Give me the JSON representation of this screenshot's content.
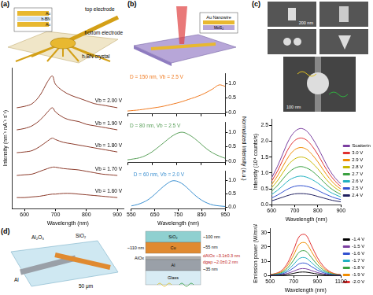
{
  "panel_labels": [
    "(a)",
    "(b)",
    "(c)",
    "(d)"
  ],
  "schematics": {
    "a": [
      "top electrode",
      "bottom electrode",
      "h-BN crystal",
      "Au",
      "h-BN",
      "Au"
    ],
    "b": [
      "Au Nanowire",
      "MoS₂"
    ],
    "c": [
      "200 nm",
      "100 nm"
    ],
    "d_top": [
      "Al₂O₃",
      "SiO₂",
      "Al",
      "50 μm"
    ],
    "d_cross": [
      "SiO₂",
      "Cu",
      "AlOx",
      "Al",
      "Glass",
      "~100 nm",
      "~55 nm",
      "~110 nm",
      "dAlOx ~3.1±0.3 nm",
      "dgap ~2.0±0.2 nm",
      "~35 nm"
    ]
  },
  "chart_data": [
    {
      "type": "line",
      "x_label": "Wavelength (nm)",
      "y_label": "Intensity (nm⁻¹ nA⁻¹ s⁻¹)",
      "x": [
        575,
        600,
        625,
        650,
        675,
        690,
        700,
        725,
        750,
        775,
        800,
        825,
        850,
        875,
        900
      ],
      "xlim": [
        560,
        920
      ],
      "xticks": [
        600,
        700,
        800,
        900
      ],
      "ylim": [
        0,
        10.2
      ],
      "tick_labels": "x",
      "grid": false,
      "series": [
        {
          "name": "Vb = 2.00 V",
          "color": "#8b3a2a",
          "values": [
            7.3,
            7.4,
            7.6,
            8.2,
            9.2,
            9.6,
            9.0,
            8.5,
            8.2,
            8.0,
            7.8,
            7.6,
            7.5,
            7.4,
            7.3
          ]
        },
        {
          "name": "Vb = 1.90 V",
          "color": "#8b3a2a",
          "values": [
            5.7,
            5.8,
            6.0,
            6.4,
            7.0,
            7.3,
            7.0,
            6.6,
            6.4,
            6.3,
            6.1,
            6.0,
            5.9,
            5.8,
            5.7
          ]
        },
        {
          "name": "Vb = 1.80 V",
          "color": "#8b3a2a",
          "values": [
            4.05,
            4.1,
            4.2,
            4.5,
            4.9,
            5.1,
            5.0,
            4.8,
            4.7,
            4.6,
            4.5,
            4.4,
            4.3,
            4.2,
            4.1
          ]
        },
        {
          "name": "Vb = 1.70 V",
          "color": "#8b3a2a",
          "values": [
            2.4,
            2.45,
            2.5,
            2.7,
            2.9,
            3.0,
            3.0,
            2.9,
            2.85,
            2.8,
            2.7,
            2.6,
            2.5,
            2.45,
            2.4
          ]
        },
        {
          "name": "Vb = 1.60 V",
          "color": "#8b3a2a",
          "values": [
            0.8,
            0.8,
            0.85,
            0.9,
            1.0,
            1.05,
            1.05,
            1.1,
            1.1,
            1.05,
            1.0,
            0.95,
            0.9,
            0.85,
            0.8
          ]
        }
      ]
    },
    {
      "type": "line",
      "x": [
        550,
        575,
        600,
        625,
        650,
        675,
        700,
        725,
        750,
        775,
        800,
        825,
        850,
        875,
        900,
        925,
        950
      ],
      "xlim": [
        550,
        950
      ],
      "xticks": [
        550,
        650,
        750,
        850,
        950
      ],
      "ylim": [
        -0.05,
        1.35
      ],
      "yticks": [
        {
          "value": 0,
          "label": "0.0"
        },
        0.5,
        {
          "value": 1,
          "label": "1.0"
        }
      ],
      "tick_labels": "y",
      "grid": false,
      "series": [
        {
          "name": "D = 150 nm, Vb = 2.5 V",
          "color": "#f07a20",
          "values": [
            0.05,
            0.07,
            0.09,
            0.12,
            0.15,
            0.18,
            0.22,
            0.27,
            0.32,
            0.38,
            0.45,
            0.52,
            0.6,
            0.7,
            0.82,
            0.95,
            0.9
          ]
        }
      ]
    },
    {
      "type": "line",
      "y_label": "Normalized Intensity (a.u.)",
      "x": [
        550,
        575,
        600,
        625,
        650,
        675,
        700,
        725,
        750,
        775,
        800,
        825,
        850,
        875,
        900,
        925,
        950
      ],
      "xlim": [
        550,
        950
      ],
      "xticks": [
        550,
        650,
        750,
        850,
        950
      ],
      "ylim": [
        -0.05,
        1.35
      ],
      "yticks": [
        {
          "value": 0,
          "label": "0.0"
        },
        0.5,
        {
          "value": 1,
          "label": "1.0"
        }
      ],
      "tick_labels": "y",
      "grid": false,
      "series": [
        {
          "name": "D = 80 nm, Vb = 2.5 V",
          "color": "#5aa05a",
          "values": [
            0.05,
            0.08,
            0.12,
            0.2,
            0.32,
            0.48,
            0.65,
            0.82,
            0.95,
            1.0,
            0.92,
            0.78,
            0.6,
            0.42,
            0.28,
            0.18,
            0.1
          ]
        }
      ]
    },
    {
      "type": "line",
      "x_label": "Wavelength (nm)",
      "x": [
        550,
        575,
        600,
        625,
        650,
        675,
        700,
        725,
        750,
        775,
        800,
        825,
        850,
        875,
        900,
        925,
        950
      ],
      "xlim": [
        550,
        950
      ],
      "xticks": [
        550,
        650,
        750,
        850,
        950
      ],
      "ylim": [
        -0.05,
        1.35
      ],
      "yticks": [
        {
          "value": 0,
          "label": "0.0"
        },
        0.5,
        {
          "value": 1,
          "label": "1.0"
        }
      ],
      "tick_labels": true,
      "grid": false,
      "series": [
        {
          "name": "D = 60 nm, Vb = 2.0 V",
          "color": "#3a8fd0",
          "values": [
            0.05,
            0.1,
            0.18,
            0.3,
            0.48,
            0.68,
            0.86,
            0.98,
            0.95,
            0.82,
            0.62,
            0.42,
            0.26,
            0.15,
            0.08,
            0.05,
            0.03
          ]
        }
      ]
    },
    {
      "type": "line",
      "x_label": "Wavelength (nm)",
      "y_label": "Intensity (10⁴ counts/s)",
      "x": [
        600,
        625,
        650,
        675,
        700,
        725,
        750,
        775,
        800,
        825,
        850,
        875,
        900
      ],
      "xlim": [
        600,
        900
      ],
      "xticks": [
        600,
        700,
        800,
        900
      ],
      "ylim": [
        0,
        2.7
      ],
      "yticks": [
        {
          "value": 0,
          "label": "0.0"
        },
        0.5,
        {
          "value": 1,
          "label": "1.0"
        },
        1.5,
        {
          "value": 2,
          "label": "2.0"
        },
        2.5
      ],
      "grid": false,
      "legend": "right",
      "series": [
        {
          "name": "Scattering",
          "color": "#7b3fa0",
          "values": [
            0.84,
            1.2,
            1.63,
            2.04,
            2.3,
            2.4,
            2.33,
            2.11,
            1.8,
            1.44,
            1.1,
            0.84,
            0.65
          ]
        },
        {
          "name": "3.0 V",
          "color": "#e03030",
          "values": [
            0.74,
            1.05,
            1.43,
            1.79,
            2.02,
            2.1,
            2.04,
            1.85,
            1.58,
            1.26,
            0.97,
            0.74,
            0.57
          ]
        },
        {
          "name": "2.9 V",
          "color": "#f08c00",
          "values": [
            0.63,
            0.9,
            1.22,
            1.53,
            1.73,
            1.8,
            1.75,
            1.58,
            1.35,
            1.08,
            0.83,
            0.63,
            0.49
          ]
        },
        {
          "name": "2.8 V",
          "color": "#c8b800",
          "values": [
            0.53,
            0.75,
            1.02,
            1.28,
            1.44,
            1.5,
            1.46,
            1.32,
            1.13,
            0.9,
            0.69,
            0.53,
            0.41
          ]
        },
        {
          "name": "2.7 V",
          "color": "#3aa040",
          "values": [
            0.42,
            0.6,
            0.82,
            1.02,
            1.15,
            1.2,
            1.16,
            1.06,
            0.9,
            0.72,
            0.55,
            0.42,
            0.32
          ]
        },
        {
          "name": "2.6 V",
          "color": "#20b0c0",
          "values": [
            0.32,
            0.45,
            0.61,
            0.77,
            0.86,
            0.9,
            0.87,
            0.79,
            0.68,
            0.54,
            0.41,
            0.32,
            0.24
          ]
        },
        {
          "name": "2.5 V",
          "color": "#3050d0",
          "values": [
            0.21,
            0.3,
            0.41,
            0.51,
            0.58,
            0.6,
            0.58,
            0.53,
            0.45,
            0.36,
            0.28,
            0.21,
            0.16
          ]
        },
        {
          "name": "2.4 V",
          "color": "#202060",
          "values": [
            0.12,
            0.18,
            0.24,
            0.3,
            0.34,
            0.35,
            0.34,
            0.31,
            0.26,
            0.21,
            0.16,
            0.12,
            0.09
          ]
        }
      ]
    },
    {
      "type": "line",
      "x_label": "Wavelength (nm)",
      "y_label": "Emission power (W/m²/A)",
      "x": [
        500,
        550,
        600,
        650,
        700,
        750,
        800,
        850,
        900,
        950,
        1000,
        1050,
        1100
      ],
      "xlim": [
        500,
        1100
      ],
      "xticks": [
        500,
        700,
        900,
        1100
      ],
      "ylim": [
        0,
        33
      ],
      "yticks": [
        0,
        10,
        20,
        30
      ],
      "grid": false,
      "legend": "right",
      "series": [
        {
          "name": "-1.4 V",
          "color": "#000000",
          "values": [
            0.05,
            0.13,
            0.3,
            0.75,
            1.5,
            2.3,
            2.38,
            1.75,
            1.05,
            0.55,
            0.25,
            0.1,
            0.05
          ]
        },
        {
          "name": "-1.5 V",
          "color": "#7b3fa0",
          "values": [
            0.1,
            0.25,
            0.6,
            1.5,
            3,
            4.6,
            4.75,
            3.5,
            2.1,
            1.1,
            0.5,
            0.2,
            0.1
          ]
        },
        {
          "name": "-1.6 V",
          "color": "#3050d0",
          "values": [
            0.18,
            0.45,
            1.08,
            2.7,
            5.4,
            8.28,
            8.55,
            6.3,
            3.78,
            1.98,
            0.9,
            0.36,
            0.18
          ]
        },
        {
          "name": "-1.7 V",
          "color": "#20b0c0",
          "values": [
            0.26,
            0.65,
            1.56,
            3.9,
            7.8,
            11.96,
            12.35,
            9.1,
            5.46,
            2.86,
            1.3,
            0.52,
            0.26
          ]
        },
        {
          "name": "-1.8 V",
          "color": "#3aa040",
          "values": [
            0.36,
            0.9,
            2.16,
            5.4,
            10.8,
            16.56,
            17.1,
            12.6,
            7.56,
            3.96,
            1.8,
            0.72,
            0.36
          ]
        },
        {
          "name": "-1.9 V",
          "color": "#f08c00",
          "values": [
            0.48,
            1.2,
            2.88,
            7.2,
            14.4,
            22.08,
            22.8,
            16.8,
            10.08,
            5.28,
            2.4,
            0.96,
            0.48
          ]
        },
        {
          "name": "-2.0 V",
          "color": "#e03030",
          "values": [
            0.6,
            1.5,
            3.6,
            9,
            18,
            27.6,
            28.5,
            21,
            12.6,
            6.6,
            3,
            1.2,
            0.6
          ]
        }
      ]
    }
  ]
}
